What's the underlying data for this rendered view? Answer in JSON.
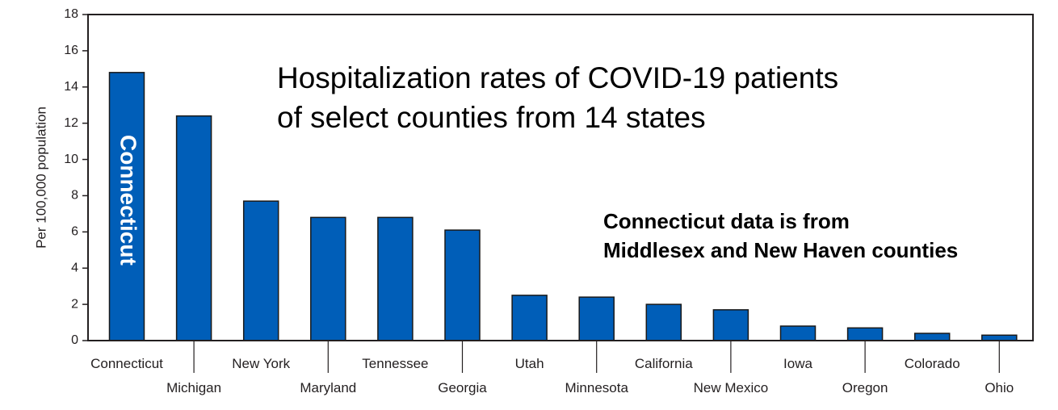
{
  "chart_data": {
    "type": "bar",
    "title_lines": [
      "Hospitalization rates of COVID-19 patients",
      "of select counties from 14 states"
    ],
    "annotation_lines": [
      "Connecticut data is from",
      "Middlesex and New Haven counties"
    ],
    "in_bar_label": "Connecticut",
    "xlabel": "",
    "ylabel": "Per 100,000 population",
    "ylim": [
      0,
      18
    ],
    "yticks": [
      "0",
      "2",
      "4",
      "6",
      "8",
      "10",
      "12",
      "14",
      "16",
      "18"
    ],
    "categories": [
      "Connecticut",
      "Michigan",
      "New York",
      "Maryland",
      "Tennessee",
      "Georgia",
      "Utah",
      "Minnesota",
      "California",
      "New Mexico",
      "Iowa",
      "Oregon",
      "Colorado",
      "Ohio"
    ],
    "values": [
      14.8,
      12.4,
      7.7,
      6.8,
      6.8,
      6.1,
      2.5,
      2.4,
      2.0,
      1.7,
      0.8,
      0.7,
      0.4,
      0.3
    ],
    "grid": false,
    "bar_color": "#005eb8",
    "bar_edge_color": "#1a1a1a"
  }
}
